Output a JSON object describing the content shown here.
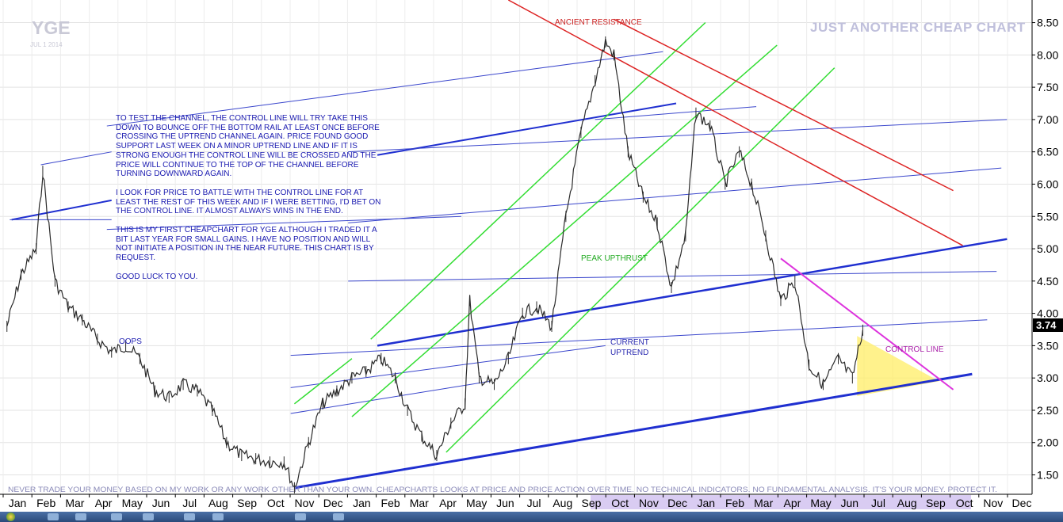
{
  "chart_data": {
    "type": "line",
    "ticker": "YGE",
    "date_label": "JUL 1 2014",
    "header": "JUST ANOTHER CHEAP CHART",
    "x_tick_labels": [
      "Jan",
      "Feb",
      "Mar",
      "Apr",
      "May",
      "Jun",
      "Jul",
      "Aug",
      "Sep",
      "Oct",
      "Nov",
      "Dec",
      "Jan",
      "Feb",
      "Mar",
      "Apr",
      "May",
      "Jun",
      "Jul",
      "Aug",
      "Sep",
      "Oct",
      "Nov",
      "Dec",
      "Jan",
      "Feb",
      "Mar",
      "Apr",
      "May",
      "Jun",
      "Jul",
      "Aug",
      "Sep",
      "Oct",
      "Nov",
      "Dec"
    ],
    "y_tick_labels": [
      "8.50",
      "8.00",
      "7.50",
      "7.00",
      "6.50",
      "6.00",
      "5.50",
      "5.00",
      "4.50",
      "4.00",
      "3.50",
      "3.00",
      "2.50",
      "2.00",
      "1.50"
    ],
    "ylim": [
      1.2,
      8.85
    ],
    "last_price_label": "3.74",
    "grid": true,
    "series": [
      {
        "x": [
          "2012-01-05",
          "2012-01-20",
          "2012-02-05",
          "2012-02-12",
          "2012-02-25",
          "2012-03-10",
          "2012-03-25",
          "2012-04-10",
          "2012-04-25",
          "2012-05-10",
          "2012-05-25",
          "2012-06-10",
          "2012-06-25",
          "2012-07-10",
          "2012-07-25",
          "2012-08-10",
          "2012-08-25",
          "2012-09-10",
          "2012-09-25",
          "2012-10-10",
          "2012-10-25",
          "2012-11-05",
          "2012-11-20",
          "2012-12-05",
          "2012-12-20",
          "2013-01-05",
          "2013-01-20",
          "2013-02-05",
          "2013-02-20",
          "2013-03-05",
          "2013-03-20",
          "2013-04-05",
          "2013-04-20",
          "2013-05-05",
          "2013-05-10",
          "2013-05-20",
          "2013-06-05",
          "2013-06-20",
          "2013-07-05",
          "2013-07-20",
          "2013-08-05",
          "2013-08-20",
          "2013-09-05",
          "2013-09-20",
          "2013-10-01",
          "2013-10-10",
          "2013-10-25",
          "2013-11-10",
          "2013-11-25",
          "2013-12-10",
          "2013-12-25",
          "2014-01-05",
          "2014-01-20",
          "2014-02-05",
          "2014-02-20",
          "2014-03-05",
          "2014-03-20",
          "2014-04-05",
          "2014-04-20",
          "2014-05-05",
          "2014-05-20",
          "2014-06-05",
          "2014-06-20",
          "2014-07-01"
        ],
        "y": [
          3.8,
          4.6,
          5.0,
          6.2,
          4.5,
          4.1,
          3.9,
          3.6,
          3.4,
          3.5,
          3.3,
          2.8,
          2.7,
          2.9,
          2.8,
          2.5,
          2.0,
          1.8,
          1.75,
          1.7,
          1.7,
          1.3,
          2.0,
          2.6,
          2.8,
          3.0,
          3.1,
          3.3,
          3.0,
          2.5,
          2.1,
          1.8,
          2.3,
          2.6,
          4.2,
          3.0,
          2.9,
          3.3,
          4.0,
          4.1,
          3.8,
          5.5,
          6.8,
          7.6,
          8.2,
          8.0,
          6.5,
          5.8,
          5.4,
          4.4,
          5.2,
          7.1,
          6.9,
          6.0,
          6.5,
          6.0,
          5.2,
          4.2,
          4.5,
          3.2,
          2.9,
          3.3,
          3.0,
          3.74
        ]
      }
    ],
    "annotations": [
      "ANCIENT RESISTANCE",
      "PEAK UPTHRUST",
      "CURRENT",
      "UPTREND",
      "CONTROL LINE",
      "OOPS"
    ],
    "notes": [
      "TO TEST THE CHANNEL, THE CONTROL LINE WILL TRY TAKE THIS DOWN TO BOUNCE OFF THE BOTTOM RAIL AT LEAST ONCE BEFORE CROSSING THE UPTREND CHANNEL AGAIN.  PRICE FOUND GOOD SUPPORT LAST WEEK ON A MINOR UPTREND LINE AND IF IT IS STRONG ENOUGH THE CONTROL LINE WILL BE CROSSED AND THE PRICE WILL CONTINUE TO THE TOP OF THE CHANNEL BEFORE TURNING DOWNWARD AGAIN.",
      "I LOOK FOR PRICE TO BATTLE WITH THE CONTROL LINE FOR AT LEAST THE REST OF THIS WEEK AND IF I WERE BETTING, I'D BET ON THE CONTROL LINE. IT ALMOST ALWAYS WINS IN THE END.",
      "THIS IS MY FIRST CHEAPCHART FOR YGE ALTHOUGH I TRADED IT A BIT LAST YEAR FOR SMALL GAINS. I HAVE NO POSITION AND WILL NOT INITIATE A POSITION IN THE NEAR FUTURE. THIS CHART IS BY REQUEST.",
      "GOOD LUCK TO YOU."
    ],
    "disclaimer": "NEVER TRADE YOUR MONEY BASED ON MY WORK OR ANY WORK OTHER THAN YOUR OWN. CHEAPCHARTS LOOKS AT PRICE AND PRICE ACTION OVER TIME. NO TECHNICAL INDICATORS. NO FUNDAMENTAL ANALYSIS. IT'S YOUR MONEY. PROTECT IT.",
    "colors": {
      "price": "#2a2a2a",
      "channel": "#1f2fd0",
      "channel_thin": "#3a46cc",
      "green_channel": "#33dd33",
      "resistance": "#dd2222",
      "control_line": "#dd33dd",
      "triangle": "#ffee66",
      "resistance_text": "#cc2222",
      "peak_text": "#22aa22",
      "uptrend_text": "#2a2ab0",
      "control_text": "#aa22aa",
      "header_text": "#b8b8d8",
      "axis_highlight": "#d7c8f0"
    }
  }
}
